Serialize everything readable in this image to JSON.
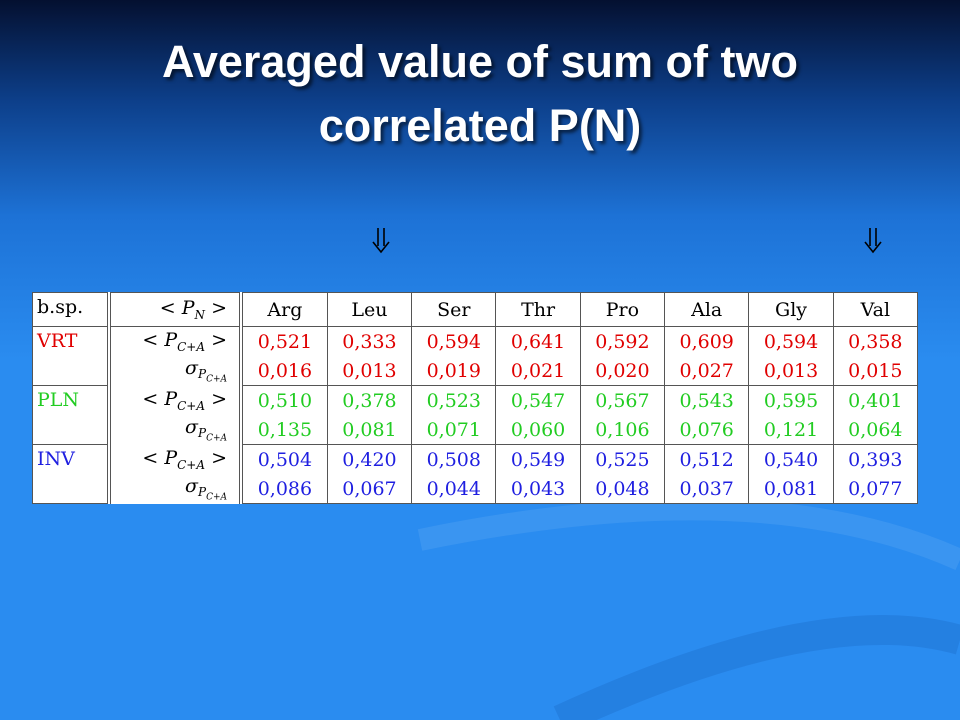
{
  "title": [
    "Averaged value of sum of two",
    "correlated P(N)"
  ],
  "table": {
    "corner": "b.sp.",
    "header_label": {
      "open": "<",
      "symbol": "P",
      "sub": "N",
      "close": ">"
    },
    "columns": [
      "Arg",
      "Leu",
      "Ser",
      "Thr",
      "Pro",
      "Ala",
      "Gly",
      "Val"
    ],
    "row_labels": [
      {
        "open": "<",
        "symbol": "P",
        "sub": "C+A",
        "close": ">"
      },
      {
        "symbol": "σ",
        "sub_symbol": "P",
        "sub_sub": "C+A"
      }
    ],
    "groups": [
      {
        "name": "VRT",
        "color": "#e00000",
        "rows": [
          [
            "0,521",
            "0,333",
            "0,594",
            "0,641",
            "0,592",
            "0,609",
            "0,594",
            "0,358"
          ],
          [
            "0,016",
            "0,013",
            "0,019",
            "0,021",
            "0,020",
            "0,027",
            "0,013",
            "0,015"
          ]
        ]
      },
      {
        "name": "PLN",
        "color": "#22cc22",
        "rows": [
          [
            "0,510",
            "0,378",
            "0,523",
            "0,547",
            "0,567",
            "0,543",
            "0,595",
            "0,401"
          ],
          [
            "0,135",
            "0,081",
            "0,071",
            "0,060",
            "0,106",
            "0,076",
            "0,121",
            "0,064"
          ]
        ]
      },
      {
        "name": "INV",
        "color": "#1f1fe0",
        "rows": [
          [
            "0,504",
            "0,420",
            "0,508",
            "0,549",
            "0,525",
            "0,512",
            "0,540",
            "0,393"
          ],
          [
            "0,086",
            "0,067",
            "0,044",
            "0,043",
            "0,048",
            "0,037",
            "0,081",
            "0,077"
          ]
        ]
      }
    ]
  }
}
